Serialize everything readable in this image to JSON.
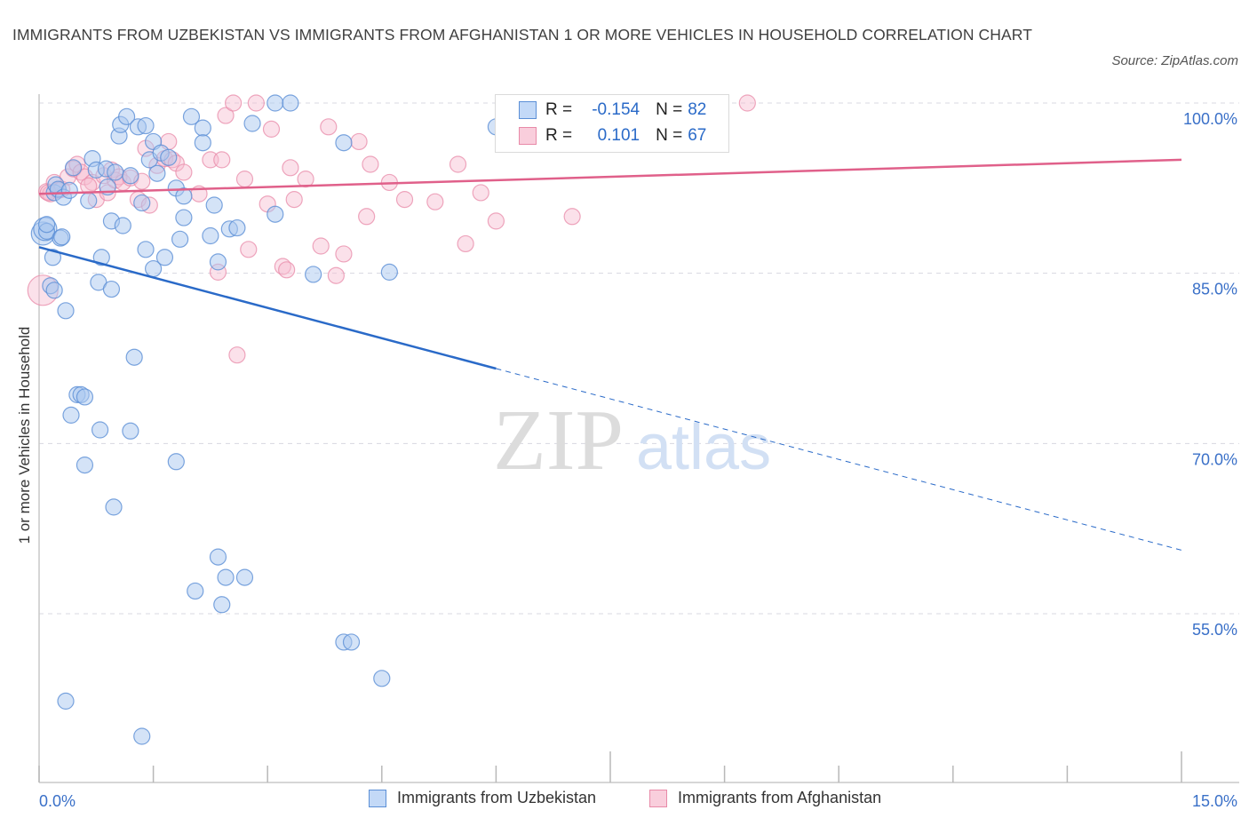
{
  "title": "IMMIGRANTS FROM UZBEKISTAN VS IMMIGRANTS FROM AFGHANISTAN 1 OR MORE VEHICLES IN HOUSEHOLD CORRELATION CHART",
  "source": "Source: ZipAtlas.com",
  "watermark": {
    "zip": "ZIP",
    "atlas": "atlas"
  },
  "legend": {
    "r_label": "R =",
    "n_label": "N =",
    "rows": [
      {
        "r": "-0.154",
        "n": "82"
      },
      {
        "r": "0.101",
        "n": "67"
      }
    ]
  },
  "colors": {
    "uzbekistan_fill": "#aac8f0",
    "uzbekistan_stroke": "#5b8fd6",
    "uzbekistan_line": "#2a6ac8",
    "afghanistan_fill": "#f6bcd0",
    "afghanistan_stroke": "#e88aa8",
    "afghanistan_line": "#e0608a",
    "tick_label": "#3a70c8",
    "grid": "#d8d8e0"
  },
  "chart_data": {
    "type": "scatter",
    "title": "IMMIGRANTS FROM UZBEKISTAN VS IMMIGRANTS FROM AFGHANISTAN 1 OR MORE VEHICLES IN HOUSEHOLD CORRELATION CHART",
    "xlabel": "",
    "ylabel": "1 or more Vehicles in Household",
    "xlim": [
      0,
      15
    ],
    "ylim": [
      40,
      101.5
    ],
    "x_tick_labels": [
      "0.0%",
      "15.0%"
    ],
    "y_ticks": [
      100,
      85,
      70,
      55
    ],
    "y_tick_labels": [
      "100.0%",
      "85.0%",
      "70.0%",
      "55.0%"
    ],
    "grid": true,
    "legend_position": "top-center",
    "series": [
      {
        "name": "Immigrants from Uzbekistan",
        "trend": {
          "x": [
            0,
            6
          ],
          "y": [
            87.3,
            76.6
          ],
          "dashed_to": [
            15,
            60.6
          ]
        },
        "points": [
          [
            0.05,
            88.5
          ],
          [
            0.08,
            88.9
          ],
          [
            0.1,
            88.7
          ],
          [
            0.15,
            83.9
          ],
          [
            0.18,
            86.4
          ],
          [
            0.2,
            92.1
          ],
          [
            0.22,
            92.8
          ],
          [
            0.25,
            92.4
          ],
          [
            0.28,
            88.1
          ],
          [
            0.3,
            88.2
          ],
          [
            0.32,
            91.7
          ],
          [
            0.35,
            81.7
          ],
          [
            0.4,
            92.3
          ],
          [
            0.45,
            94.3
          ],
          [
            0.5,
            74.3
          ],
          [
            0.55,
            74.3
          ],
          [
            0.6,
            74.1
          ],
          [
            0.65,
            91.4
          ],
          [
            0.7,
            95.1
          ],
          [
            0.75,
            94.1
          ],
          [
            0.8,
            71.2
          ],
          [
            0.78,
            84.2
          ],
          [
            0.82,
            86.4
          ],
          [
            0.88,
            94.2
          ],
          [
            0.9,
            92.6
          ],
          [
            0.95,
            89.6
          ],
          [
            0.95,
            83.6
          ],
          [
            1.0,
            93.9
          ],
          [
            1.05,
            97.1
          ],
          [
            1.07,
            98.1
          ],
          [
            1.1,
            89.2
          ],
          [
            1.15,
            98.8
          ],
          [
            1.2,
            93.6
          ],
          [
            1.2,
            71.1
          ],
          [
            1.25,
            77.6
          ],
          [
            1.3,
            97.9
          ],
          [
            1.35,
            91.2
          ],
          [
            1.4,
            87.1
          ],
          [
            1.4,
            98.0
          ],
          [
            1.45,
            95.0
          ],
          [
            1.5,
            96.6
          ],
          [
            1.5,
            85.4
          ],
          [
            1.55,
            93.8
          ],
          [
            1.6,
            95.6
          ],
          [
            1.65,
            86.4
          ],
          [
            1.7,
            95.2
          ],
          [
            1.8,
            68.4
          ],
          [
            1.8,
            92.5
          ],
          [
            1.85,
            88.0
          ],
          [
            1.9,
            89.9
          ],
          [
            1.9,
            91.8
          ],
          [
            2.0,
            98.8
          ],
          [
            2.05,
            57.0
          ],
          [
            2.15,
            97.8
          ],
          [
            2.15,
            96.5
          ],
          [
            2.25,
            88.3
          ],
          [
            2.3,
            91.0
          ],
          [
            2.35,
            86.0
          ],
          [
            2.35,
            60.0
          ],
          [
            2.4,
            55.8
          ],
          [
            2.45,
            58.2
          ],
          [
            2.5,
            88.9
          ],
          [
            2.6,
            89.0
          ],
          [
            2.7,
            58.2
          ],
          [
            2.8,
            98.2
          ],
          [
            3.1,
            90.2
          ],
          [
            3.1,
            100.0
          ],
          [
            3.3,
            100.0
          ],
          [
            3.6,
            84.9
          ],
          [
            4.0,
            96.5
          ],
          [
            4.0,
            52.5
          ],
          [
            4.1,
            52.5
          ],
          [
            4.5,
            49.3
          ],
          [
            4.6,
            85.1
          ],
          [
            6.0,
            97.9
          ],
          [
            0.35,
            47.3
          ],
          [
            0.42,
            72.5
          ],
          [
            0.6,
            68.1
          ],
          [
            0.98,
            64.4
          ],
          [
            1.35,
            44.2
          ],
          [
            0.2,
            83.5
          ],
          [
            0.1,
            89.3
          ]
        ]
      },
      {
        "name": "Immigrants from Afghanistan",
        "trend": {
          "x": [
            0,
            15
          ],
          "y": [
            92.0,
            95.0
          ]
        },
        "points": [
          [
            0.05,
            83.5
          ],
          [
            0.1,
            92.2
          ],
          [
            0.15,
            92.0
          ],
          [
            0.2,
            93.0
          ],
          [
            0.25,
            92.3
          ],
          [
            0.3,
            92.4
          ],
          [
            0.38,
            93.5
          ],
          [
            0.45,
            94.2
          ],
          [
            0.5,
            94.6
          ],
          [
            0.55,
            93.9
          ],
          [
            0.6,
            93.5
          ],
          [
            0.7,
            93.0
          ],
          [
            0.75,
            91.5
          ],
          [
            0.85,
            93.6
          ],
          [
            0.9,
            92.1
          ],
          [
            0.95,
            94.1
          ],
          [
            1.0,
            93.2
          ],
          [
            1.05,
            93.5
          ],
          [
            1.1,
            93.0
          ],
          [
            1.2,
            93.4
          ],
          [
            1.3,
            91.5
          ],
          [
            1.35,
            93.1
          ],
          [
            1.4,
            96.0
          ],
          [
            1.45,
            91.0
          ],
          [
            1.55,
            94.5
          ],
          [
            1.65,
            95.1
          ],
          [
            1.7,
            96.6
          ],
          [
            1.75,
            95.0
          ],
          [
            1.8,
            94.7
          ],
          [
            1.9,
            93.9
          ],
          [
            2.1,
            92.0
          ],
          [
            2.25,
            95.0
          ],
          [
            2.35,
            85.1
          ],
          [
            2.4,
            95.0
          ],
          [
            2.45,
            98.9
          ],
          [
            2.55,
            100.0
          ],
          [
            2.6,
            77.8
          ],
          [
            2.7,
            93.3
          ],
          [
            2.75,
            87.1
          ],
          [
            2.85,
            100.0
          ],
          [
            3.0,
            91.1
          ],
          [
            3.05,
            97.7
          ],
          [
            3.2,
            85.6
          ],
          [
            3.25,
            85.3
          ],
          [
            3.3,
            94.3
          ],
          [
            3.35,
            91.5
          ],
          [
            3.5,
            93.3
          ],
          [
            3.7,
            87.4
          ],
          [
            3.8,
            97.9
          ],
          [
            3.9,
            84.8
          ],
          [
            4.0,
            86.7
          ],
          [
            4.2,
            96.6
          ],
          [
            4.3,
            90.0
          ],
          [
            4.35,
            94.6
          ],
          [
            4.6,
            93.0
          ],
          [
            4.8,
            91.5
          ],
          [
            5.2,
            91.3
          ],
          [
            5.5,
            94.6
          ],
          [
            5.6,
            87.6
          ],
          [
            5.8,
            92.1
          ],
          [
            6.0,
            89.6
          ],
          [
            6.6,
            99.5
          ],
          [
            7.0,
            90.0
          ],
          [
            8.3,
            100.0
          ],
          [
            9.3,
            100.0
          ],
          [
            0.12,
            92.1
          ],
          [
            0.65,
            92.7
          ]
        ]
      }
    ]
  },
  "bottom_legend": [
    "Immigrants from Uzbekistan",
    "Immigrants from Afghanistan"
  ]
}
